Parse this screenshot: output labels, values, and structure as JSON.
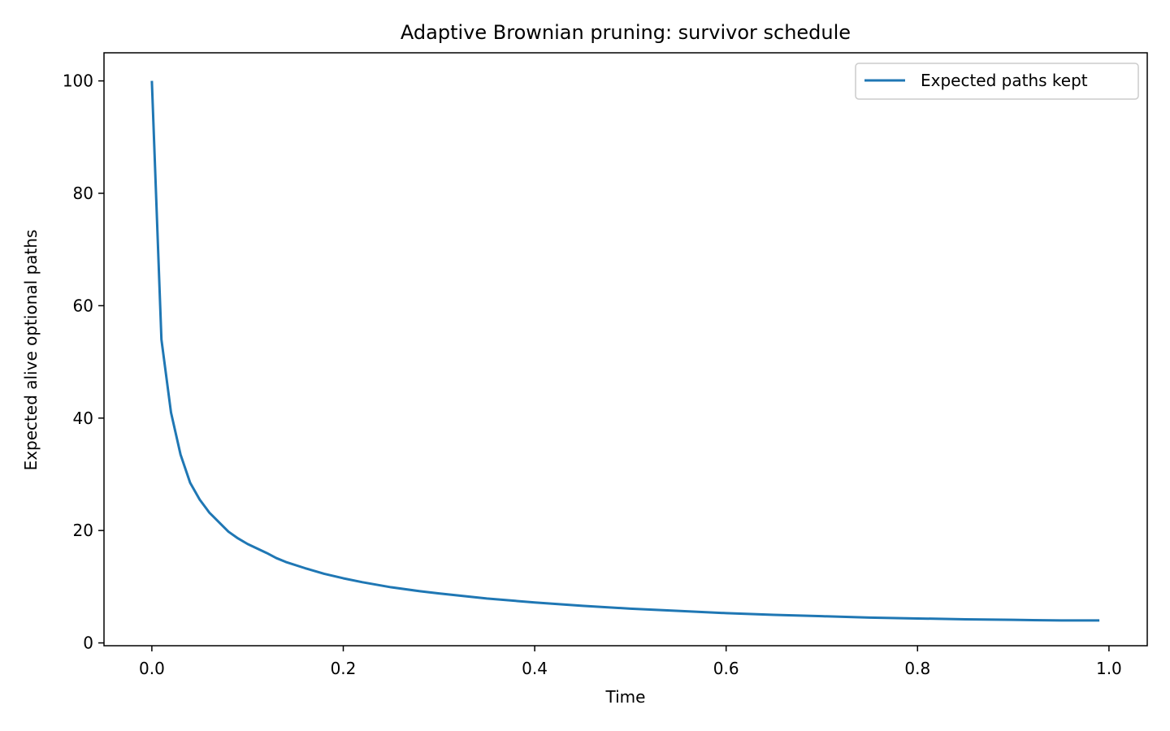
{
  "chart_data": {
    "type": "line",
    "title": "Adaptive Brownian pruning: survivor schedule",
    "xlabel": "Time",
    "ylabel": "Expected alive optional paths",
    "xlim": [
      -0.05,
      1.04
    ],
    "ylim": [
      -0.5,
      105
    ],
    "xticks": [
      0.0,
      0.2,
      0.4,
      0.6,
      0.8,
      1.0
    ],
    "xtick_labels": [
      "0.0",
      "0.2",
      "0.4",
      "0.6",
      "0.8",
      "1.0"
    ],
    "yticks": [
      0,
      20,
      40,
      60,
      80,
      100
    ],
    "ytick_labels": [
      "0",
      "20",
      "40",
      "60",
      "80",
      "100"
    ],
    "grid": false,
    "legend_position": "top-right",
    "series": [
      {
        "name": "Expected paths kept",
        "color": "#1f77b4",
        "x": [
          0.0,
          0.01,
          0.02,
          0.03,
          0.04,
          0.05,
          0.06,
          0.07,
          0.08,
          0.09,
          0.1,
          0.12,
          0.13,
          0.14,
          0.16,
          0.18,
          0.2,
          0.22,
          0.25,
          0.28,
          0.3,
          0.35,
          0.4,
          0.45,
          0.5,
          0.55,
          0.6,
          0.65,
          0.7,
          0.75,
          0.8,
          0.85,
          0.9,
          0.95,
          0.99
        ],
        "values": [
          100,
          54,
          41,
          33.5,
          28.5,
          25.5,
          23.2,
          21.5,
          19.8,
          18.6,
          17.6,
          16.0,
          15.1,
          14.4,
          13.3,
          12.3,
          11.5,
          10.8,
          9.9,
          9.2,
          8.8,
          7.9,
          7.2,
          6.6,
          6.1,
          5.7,
          5.3,
          5.0,
          4.75,
          4.5,
          4.35,
          4.2,
          4.1,
          4.0,
          4.0
        ]
      }
    ]
  }
}
